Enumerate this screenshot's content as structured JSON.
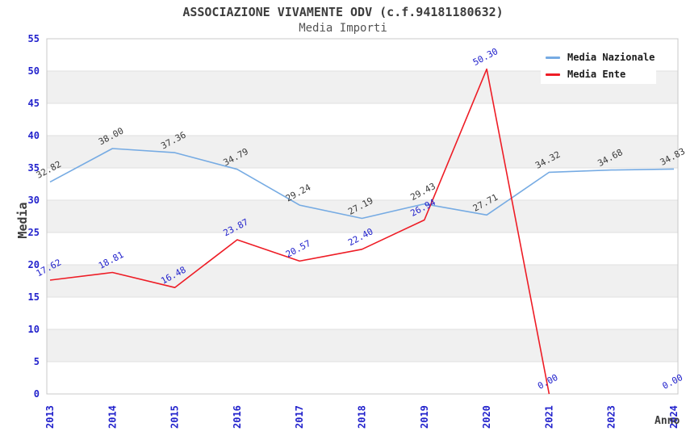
{
  "chart_data": {
    "type": "line",
    "title": "ASSOCIAZIONE VIVAMENTE ODV (c.f.94181180632)",
    "subtitle": "Media Importi",
    "xlabel": "Anno",
    "ylabel": "Media",
    "categories": [
      "2013",
      "2014",
      "2015",
      "2016",
      "2017",
      "2018",
      "2019",
      "2020",
      "2021",
      "2023",
      "2024"
    ],
    "ylim": [
      0,
      55
    ],
    "yticks": [
      0,
      5,
      10,
      15,
      20,
      25,
      30,
      35,
      40,
      45,
      50,
      55
    ],
    "grid": true,
    "banded_background": true,
    "legend_position": "top-right",
    "series": [
      {
        "name": "Media Nazionale",
        "color": "#76abe3",
        "label_color": "#3a3a3a",
        "values": [
          32.82,
          38.0,
          37.36,
          34.79,
          29.24,
          27.19,
          29.43,
          27.71,
          34.32,
          34.68,
          34.83
        ]
      },
      {
        "name": "Media Ente",
        "color": "#ee1c25",
        "label_color": "#2222cc",
        "values": [
          17.62,
          18.81,
          16.48,
          23.87,
          20.57,
          22.4,
          26.94,
          50.3,
          0.0,
          null,
          0.0
        ]
      }
    ],
    "colors": {
      "tick_label": "#2222cc",
      "band": "#f0f0f0",
      "gridline": "#dfdfdf",
      "border": "#c8c8c8",
      "title": "#3c3c3c",
      "subtitle": "#545454",
      "axis_label": "#3c3c3c"
    }
  }
}
